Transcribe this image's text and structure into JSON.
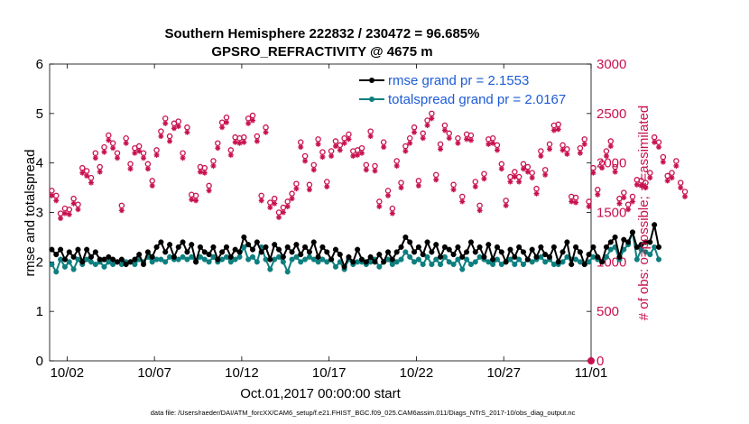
{
  "chart_data": {
    "type": "line",
    "title_line1": "Southern Hemisphere 222832 / 230472 = 96.685%",
    "title_line2": "GPSRO_REFRACTIVITY @ 4675 m",
    "xlabel": "Oct.01,2017 00:00:00 start",
    "ylabel_left": "rmse and totalspread",
    "ylabel_right": "# of obs: o=possible; ∗=assimilated",
    "xlim": [
      0,
      31
    ],
    "ylim_left": [
      0,
      6
    ],
    "ylim_right": [
      0,
      3000
    ],
    "x_ticks": [
      1,
      6,
      11,
      16,
      21,
      26,
      31
    ],
    "x_tick_labels": [
      "10/02",
      "10/07",
      "10/12",
      "10/17",
      "10/22",
      "10/27",
      "11/01"
    ],
    "y_ticks_left": [
      "0",
      "1",
      "2",
      "3",
      "4",
      "5",
      "6"
    ],
    "y_ticks_right": [
      "0",
      "500",
      "1000",
      "1500",
      "2000",
      "2500",
      "3000"
    ],
    "legend": [
      {
        "label": "rmse grand pr = 2.1553",
        "color": "#000000"
      },
      {
        "label": "totalspread grand pr = 2.0167",
        "color": "#0e7f7f"
      }
    ],
    "colors": {
      "rmse": "#000000",
      "spread": "#0e7f7f",
      "obs": "#c8104f"
    },
    "x_step_days": 0.25,
    "series": [
      {
        "name": "rmse",
        "axis": "left",
        "values": [
          2.25,
          2.15,
          2.25,
          2.05,
          2.2,
          2.1,
          2.25,
          2.0,
          2.25,
          2.1,
          2.2,
          2.05,
          2.05,
          2.1,
          2.05,
          2.0,
          2.05,
          1.95,
          2.0,
          2.05,
          2.15,
          1.95,
          2.2,
          2.1,
          2.3,
          2.4,
          2.2,
          2.35,
          2.1,
          2.3,
          2.4,
          2.2,
          2.35,
          2.0,
          2.3,
          2.2,
          2.15,
          2.3,
          2.05,
          2.2,
          2.3,
          2.1,
          2.25,
          2.2,
          2.5,
          2.35,
          2.25,
          2.4,
          2.2,
          2.3,
          2.05,
          2.35,
          2.25,
          2.1,
          2.3,
          2.2,
          2.35,
          2.15,
          2.3,
          2.2,
          2.4,
          2.1,
          2.3,
          2.2,
          2.05,
          2.25,
          2.15,
          1.9,
          2.1,
          2.0,
          2.25,
          2.05,
          2.0,
          2.1,
          2.0,
          2.15,
          2.0,
          2.2,
          2.05,
          2.2,
          2.3,
          2.5,
          2.4,
          2.2,
          2.3,
          2.15,
          2.4,
          2.2,
          2.35,
          2.1,
          2.3,
          2.25,
          2.15,
          2.3,
          2.1,
          2.2,
          2.4,
          2.2,
          2.3,
          2.1,
          2.35,
          2.05,
          2.3,
          2.2,
          2.0,
          2.25,
          2.1,
          2.3,
          2.2,
          2.05,
          2.25,
          2.1,
          2.3,
          2.15,
          2.1,
          2.3,
          2.0,
          2.2,
          2.4,
          1.95,
          2.3,
          2.2,
          1.95,
          2.15,
          2.3,
          2.1,
          2.0,
          2.3,
          2.4,
          2.5,
          2.1,
          2.45,
          2.4,
          2.6,
          2.3,
          2.35,
          2.4,
          2.4,
          2.75,
          2.3
        ]
      },
      {
        "name": "totalspread",
        "axis": "left",
        "values": [
          1.95,
          1.8,
          2.05,
          1.9,
          2.0,
          1.85,
          2.05,
          1.95,
          2.05,
          2.0,
          1.95,
          2.0,
          1.9,
          2.0,
          1.95,
          2.0,
          1.95,
          2.0,
          2.0,
          1.95,
          2.05,
          2.0,
          2.1,
          2.0,
          2.05,
          2.05,
          2.0,
          2.1,
          2.05,
          2.05,
          2.1,
          2.05,
          2.1,
          2.0,
          2.1,
          2.05,
          2.0,
          2.1,
          2.0,
          2.05,
          2.1,
          2.0,
          2.05,
          2.1,
          2.3,
          2.05,
          2.1,
          2.0,
          2.3,
          2.05,
          1.85,
          2.05,
          2.1,
          2.0,
          1.8,
          2.05,
          2.1,
          2.0,
          2.05,
          2.1,
          2.05,
          2.0,
          2.05,
          2.0,
          2.05,
          1.9,
          2.0,
          1.85,
          2.05,
          1.95,
          2.0,
          2.0,
          1.95,
          2.0,
          2.05,
          1.9,
          2.0,
          2.05,
          1.95,
          2.0,
          2.05,
          2.2,
          2.1,
          2.0,
          2.05,
          1.95,
          2.1,
          1.95,
          2.05,
          1.95,
          2.1,
          2.0,
          1.95,
          2.05,
          1.85,
          2.05,
          1.95,
          2.0,
          2.1,
          2.05,
          2.0,
          1.95,
          2.05,
          1.95,
          2.0,
          2.05,
          1.95,
          2.05,
          1.95,
          2.05,
          2.0,
          2.05,
          2.1,
          2.0,
          2.05,
          1.95,
          1.95,
          2.0,
          2.1,
          2.05,
          2.05,
          2.0,
          1.95,
          2.0,
          2.1,
          2.05,
          2.0,
          2.1,
          2.25,
          2.3,
          2.05,
          2.25,
          2.35,
          2.6,
          2.05,
          2.25,
          2.2,
          2.15,
          2.3,
          2.05
        ]
      },
      {
        "name": "possible",
        "axis": "right",
        "values": [
          1720,
          1670,
          1490,
          1540,
          1530,
          1640,
          1580,
          1950,
          1920,
          1850,
          2100,
          1960,
          2160,
          2280,
          2200,
          2100,
          1570,
          2250,
          1990,
          2150,
          2170,
          2100,
          1990,
          1820,
          2130,
          2320,
          2450,
          2270,
          2400,
          2420,
          2100,
          2360,
          1680,
          1670,
          1960,
          1950,
          1770,
          2020,
          2200,
          2410,
          2460,
          2130,
          2260,
          2250,
          2260,
          2450,
          2480,
          2270,
          1670,
          2360,
          1600,
          1640,
          1500,
          1550,
          1610,
          1690,
          1790,
          2210,
          2070,
          1780,
          1980,
          2240,
          2110,
          1810,
          2120,
          2220,
          2180,
          2250,
          2290,
          2120,
          2130,
          2150,
          1980,
          2320,
          1970,
          1610,
          2210,
          1720,
          1540,
          2020,
          1800,
          2170,
          2250,
          2360,
          1820,
          2300,
          2430,
          2500,
          1880,
          2190,
          2380,
          2300,
          1780,
          2250,
          1660,
          2290,
          2280,
          1810,
          1570,
          1890,
          2240,
          2250,
          2180,
          1990,
          1620,
          1860,
          1910,
          1860,
          1990,
          1960,
          1900,
          1740,
          2120,
          1930,
          2190,
          2380,
          2390,
          2180,
          2140,
          1660,
          1650,
          2150,
          2240,
          1610,
          1950,
          1730,
          2000,
          2120,
          2220,
          1960,
          1640,
          1700,
          1580,
          1660,
          1830,
          1820,
          1800,
          1900,
          2260,
          2210,
          2060,
          1870,
          1900,
          2020,
          1800,
          1710
        ]
      },
      {
        "name": "assimilated",
        "axis": "right",
        "values": [
          1670,
          1620,
          1440,
          1490,
          1480,
          1590,
          1530,
          1900,
          1870,
          1800,
          2050,
          1910,
          2110,
          2230,
          2150,
          2050,
          1520,
          2200,
          1940,
          2100,
          2120,
          2050,
          1940,
          1770,
          2080,
          2270,
          2400,
          2220,
          2350,
          2370,
          2050,
          2310,
          1630,
          1620,
          1910,
          1900,
          1720,
          1970,
          2150,
          2360,
          2410,
          2080,
          2210,
          2200,
          2210,
          2400,
          2430,
          2220,
          1620,
          2310,
          1550,
          1590,
          1450,
          1500,
          1560,
          1640,
          1740,
          2160,
          2020,
          1730,
          1930,
          2190,
          2060,
          1760,
          2070,
          2170,
          2130,
          2200,
          2240,
          2070,
          2080,
          2100,
          1930,
          2270,
          1920,
          1560,
          2160,
          1670,
          1490,
          1970,
          1750,
          2120,
          2200,
          2310,
          1770,
          2250,
          2380,
          2450,
          1830,
          2140,
          2330,
          2250,
          1730,
          2200,
          1610,
          2240,
          2230,
          1760,
          1520,
          1840,
          2190,
          2200,
          2130,
          1940,
          1570,
          1810,
          1860,
          1810,
          1940,
          1910,
          1850,
          1690,
          2070,
          1880,
          2140,
          2330,
          2340,
          2130,
          2090,
          1610,
          1600,
          2100,
          2190,
          1560,
          1900,
          1680,
          1950,
          2070,
          2170,
          1910,
          1590,
          1650,
          1530,
          1610,
          1780,
          1770,
          1750,
          1850,
          2210,
          2160,
          2010,
          1820,
          1850,
          1970,
          1750,
          1660
        ]
      }
    ]
  },
  "footnote": "data file: /Users/raeder/DAI/ATM_forcXX/CAM6_setup/f.e21.FHIST_BGC.f09_025.CAM6assim.011/Diags_NTrS_2017-10/obs_diag_output.nc"
}
